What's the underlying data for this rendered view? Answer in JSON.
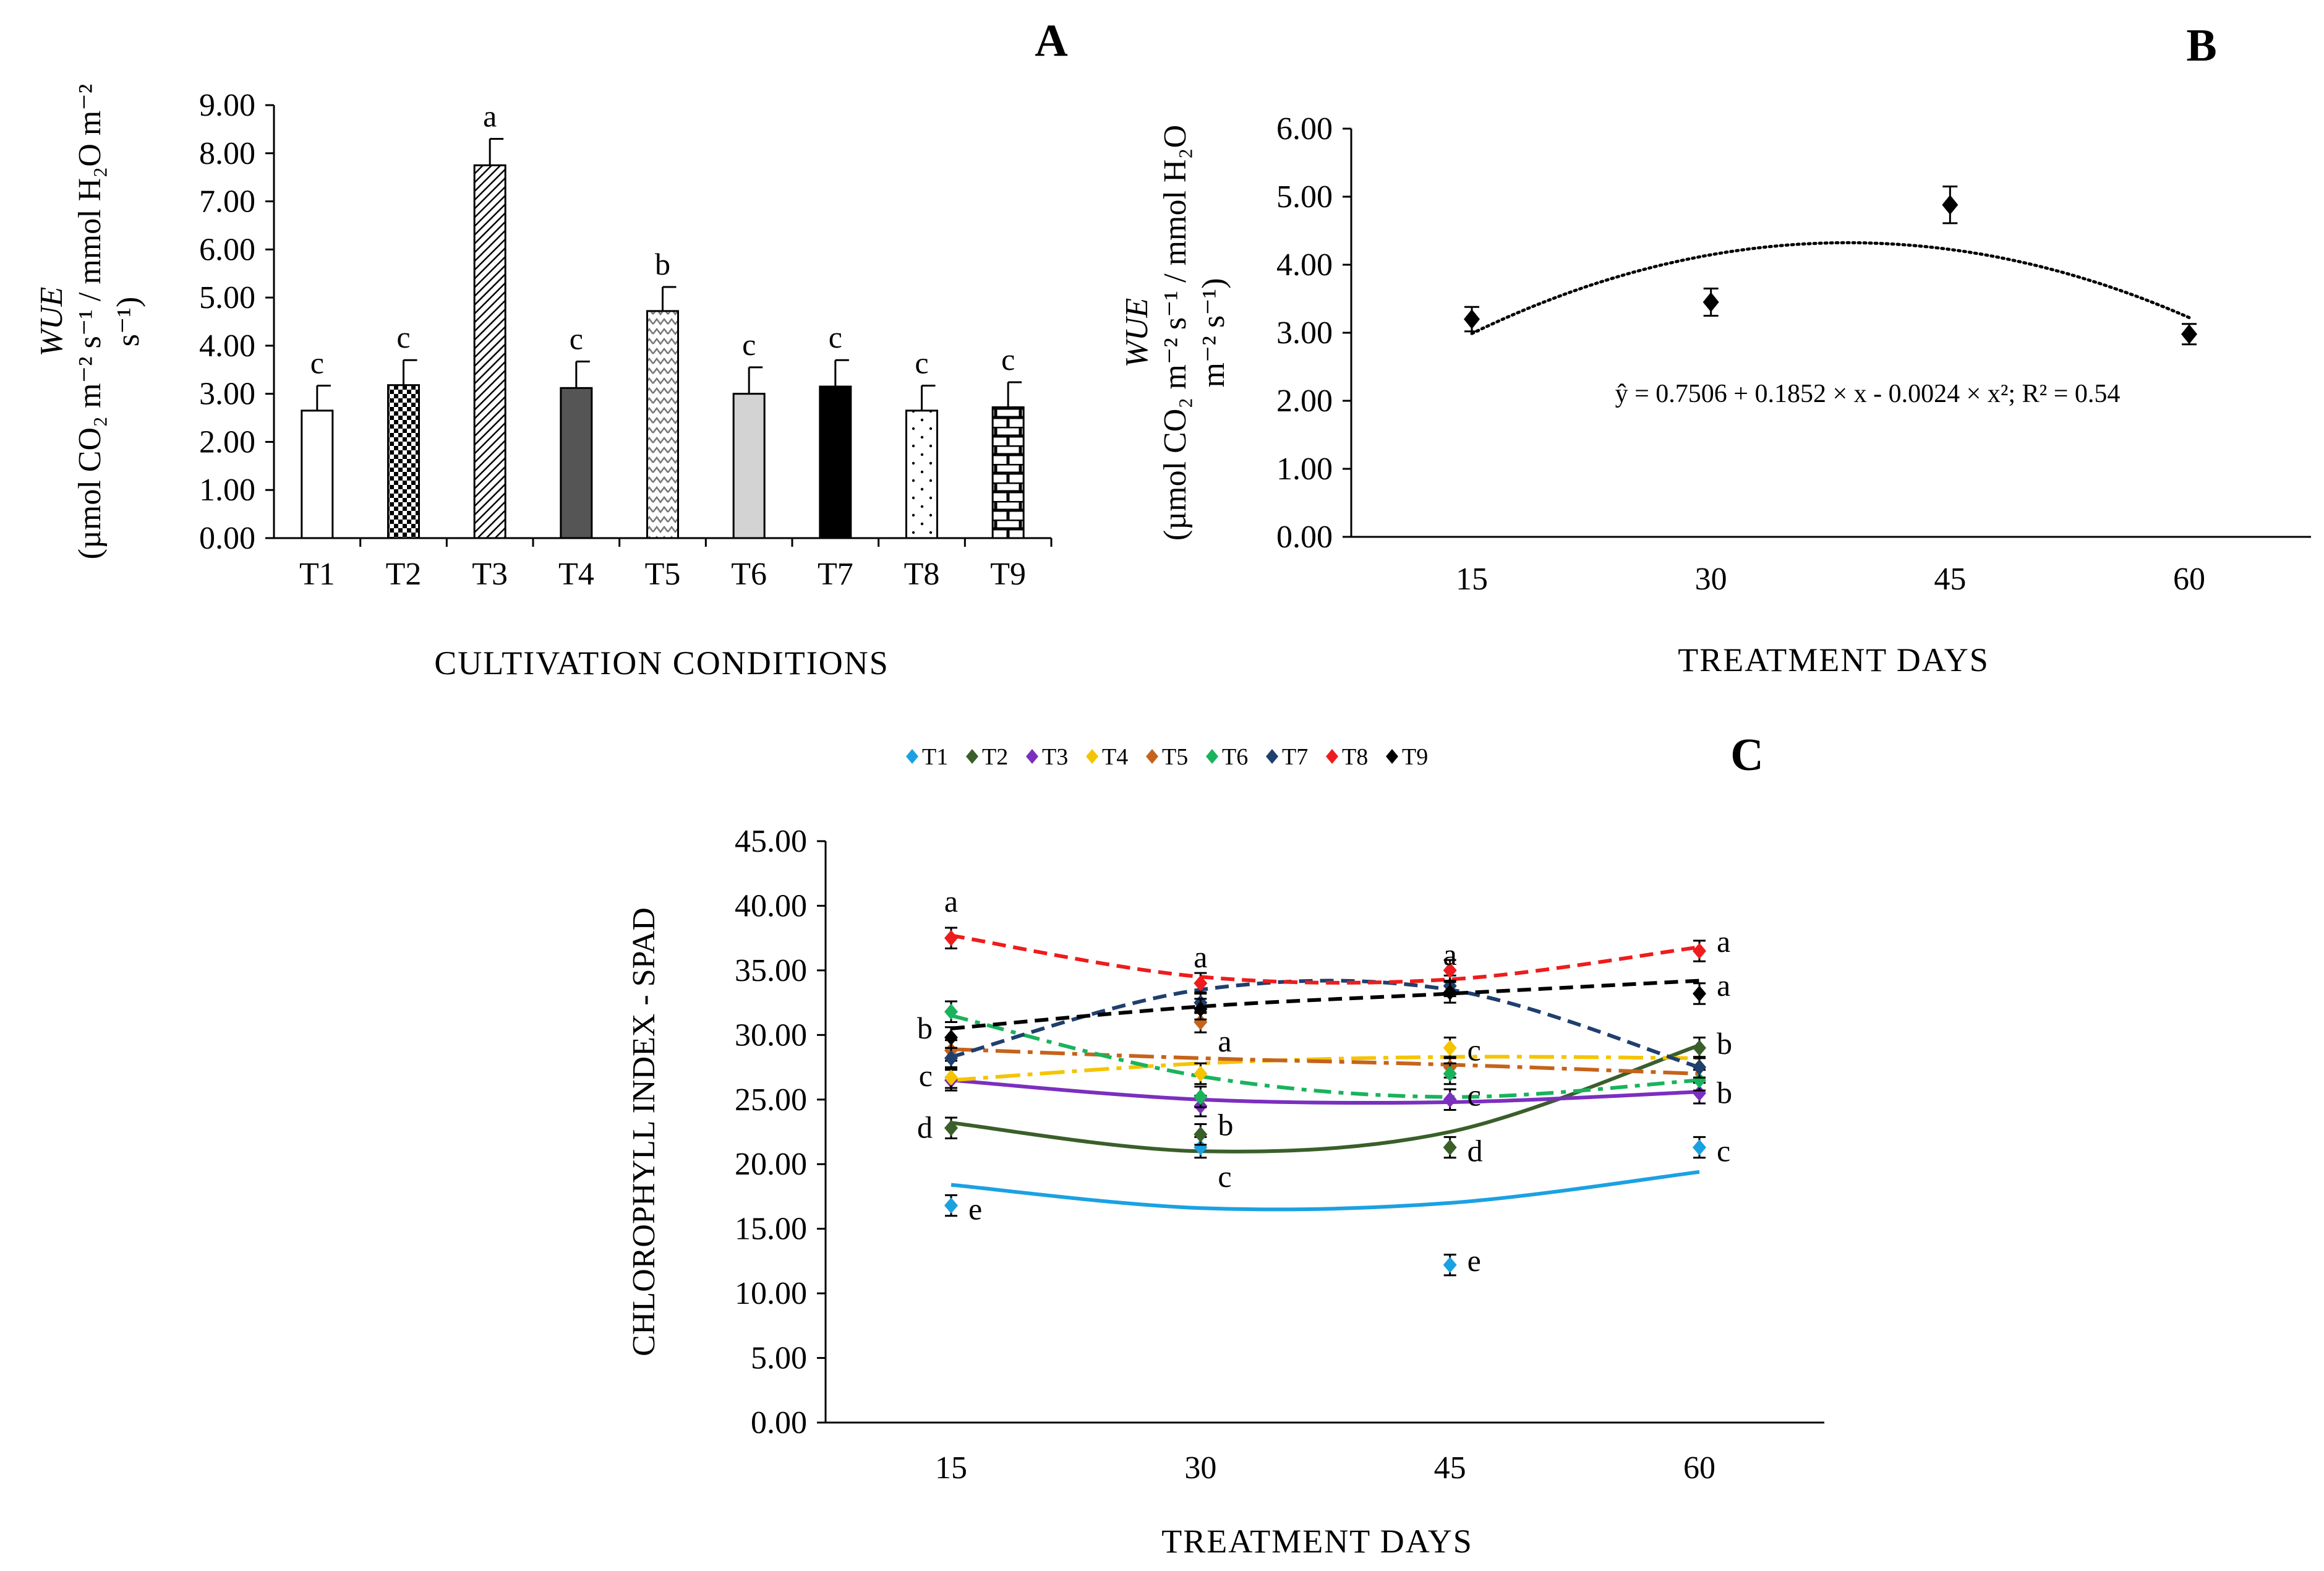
{
  "chart_data": [
    {
      "panel": "A",
      "type": "bar",
      "xlabel": "CULTIVATION  CONDITIONS",
      "ylabel": [
        "WUE",
        "(µmol CO₂ m⁻² s⁻¹ / mmol H₂O m⁻²",
        "s⁻¹)"
      ],
      "categories": [
        "T1",
        "T2",
        "T3",
        "T4",
        "T5",
        "T6",
        "T7",
        "T8",
        "T9"
      ],
      "values": [
        2.65,
        3.18,
        7.75,
        3.12,
        4.72,
        3.0,
        3.15,
        2.65,
        2.72
      ],
      "errors": [
        0.52,
        0.52,
        0.55,
        0.55,
        0.5,
        0.55,
        0.55,
        0.52,
        0.52
      ],
      "letters": [
        "c",
        "c",
        "a",
        "c",
        "b",
        "c",
        "c",
        "c",
        "c"
      ],
      "ylim": [
        0,
        9
      ],
      "yticks": [
        "0.00",
        "1.00",
        "2.00",
        "3.00",
        "4.00",
        "5.00",
        "6.00",
        "7.00",
        "8.00",
        "9.00"
      ]
    },
    {
      "panel": "B",
      "type": "scatter",
      "xlabel": "TREATMENT  DAYS",
      "ylabel": [
        "WUE",
        "(µmol CO₂ m⁻² s⁻¹ / mmol H₂O",
        "m⁻² s⁻¹)"
      ],
      "x": [
        15,
        30,
        45,
        60
      ],
      "y": [
        3.2,
        3.45,
        4.88,
        2.98
      ],
      "errors": [
        0.18,
        0.2,
        0.27,
        0.15
      ],
      "fit": {
        "a": 0.7506,
        "b": 0.1852,
        "c": -0.0024
      },
      "equation": "ŷ = 0.7506 + 0.1852 × x - 0.0024 × x²; R² = 0.54",
      "ylim": [
        0,
        6
      ],
      "yticks": [
        "0.00",
        "1.00",
        "2.00",
        "3.00",
        "4.00",
        "5.00",
        "6.00"
      ],
      "xticks": [
        "15",
        "30",
        "45",
        "60"
      ]
    },
    {
      "panel": "C",
      "type": "line",
      "xlabel": "TREATMENT  DAYS",
      "ylabel": "CHLOROPHYLL INDEX - SPAD",
      "x": [
        15,
        30,
        45,
        60
      ],
      "ylim": [
        0,
        45
      ],
      "yticks": [
        "0.00",
        "5.00",
        "10.00",
        "15.00",
        "20.00",
        "25.00",
        "30.00",
        "35.00",
        "40.00",
        "45.00"
      ],
      "xticks": [
        "15",
        "30",
        "45",
        "60"
      ],
      "series": [
        {
          "name": "T1",
          "color": "#1BA1E2",
          "values": [
            16.8,
            21.3,
            12.2,
            21.3
          ],
          "trend": [
            18.4,
            16.6,
            17.0,
            19.4
          ]
        },
        {
          "name": "T2",
          "color": "#3A5F2A",
          "values": [
            22.8,
            22.3,
            21.3,
            29.0
          ],
          "trend": [
            23.2,
            21.0,
            22.5,
            29.2
          ]
        },
        {
          "name": "T3",
          "color": "#7B2FBE",
          "values": [
            26.5,
            24.5,
            25.0,
            25.5
          ],
          "trend": [
            26.5,
            25.0,
            24.8,
            25.6
          ]
        },
        {
          "name": "T4",
          "color": "#F5C400",
          "values": [
            26.7,
            27.0,
            29.0,
            27.5
          ],
          "trend": [
            26.5,
            27.8,
            28.3,
            28.2
          ]
        },
        {
          "name": "T5",
          "color": "#C5631C",
          "values": [
            28.8,
            31.0,
            27.5,
            27.5
          ],
          "trend": [
            28.9,
            28.2,
            27.7,
            27.0
          ]
        },
        {
          "name": "T6",
          "color": "#19B35C",
          "values": [
            31.8,
            25.2,
            27.0,
            26.5
          ],
          "trend": [
            31.5,
            26.8,
            25.2,
            26.5
          ]
        },
        {
          "name": "T7",
          "color": "#1F3F6E",
          "values": [
            28.2,
            32.5,
            33.8,
            27.5
          ],
          "trend": [
            28.3,
            33.5,
            33.5,
            27.5
          ]
        },
        {
          "name": "T8",
          "color": "#EE1C1C",
          "values": [
            37.5,
            34.0,
            35.0,
            36.5
          ],
          "trend": [
            37.7,
            34.5,
            34.3,
            36.8
          ]
        },
        {
          "name": "T9",
          "color": "#000000",
          "values": [
            29.8,
            32.0,
            33.3,
            33.2
          ],
          "trend": [
            30.5,
            32.2,
            33.2,
            34.2
          ]
        }
      ],
      "labels": [
        {
          "x": 15,
          "y": 40.3,
          "text": "a",
          "side": "center"
        },
        {
          "x": 15,
          "y": 30.5,
          "text": "b",
          "side": "left"
        },
        {
          "x": 15,
          "y": 26.8,
          "text": "c",
          "side": "left"
        },
        {
          "x": 15,
          "y": 22.8,
          "text": "d",
          "side": "left"
        },
        {
          "x": 15,
          "y": 16.5,
          "text": "e",
          "side": "right"
        },
        {
          "x": 30,
          "y": 36.0,
          "text": "a",
          "side": "center"
        },
        {
          "x": 30,
          "y": 29.5,
          "text": "a",
          "side": "right"
        },
        {
          "x": 30,
          "y": 23.0,
          "text": "b",
          "side": "right"
        },
        {
          "x": 30,
          "y": 19.0,
          "text": "c",
          "side": "right"
        },
        {
          "x": 45,
          "y": 36.2,
          "text": "a",
          "side": "center"
        },
        {
          "x": 45,
          "y": 28.8,
          "text": "c",
          "side": "right"
        },
        {
          "x": 45,
          "y": 25.3,
          "text": "c",
          "side": "right"
        },
        {
          "x": 45,
          "y": 21.0,
          "text": "d",
          "side": "right"
        },
        {
          "x": 45,
          "y": 12.5,
          "text": "e",
          "side": "right"
        },
        {
          "x": 60,
          "y": 37.2,
          "text": "a",
          "side": "right"
        },
        {
          "x": 60,
          "y": 33.8,
          "text": "a",
          "side": "right"
        },
        {
          "x": 60,
          "y": 29.3,
          "text": "b",
          "side": "right"
        },
        {
          "x": 60,
          "y": 25.5,
          "text": "b",
          "side": "right"
        },
        {
          "x": 60,
          "y": 21.0,
          "text": "c",
          "side": "right"
        }
      ]
    }
  ]
}
